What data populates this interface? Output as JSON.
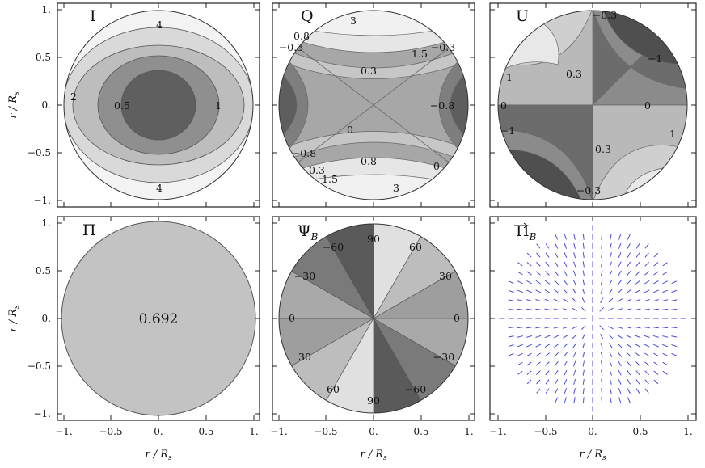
{
  "axis_labels": {
    "y": "r / R",
    "y_sub": "s",
    "x": "r / R",
    "x_sub": "s"
  },
  "chart_data": [
    {
      "type": "contour",
      "panel_label": "I",
      "xlim": [
        -1,
        1
      ],
      "ylim": [
        -1,
        1
      ],
      "x_ticks": [],
      "y_ticks": [
        "1.",
        "0.5",
        "0.",
        "−0.5",
        "−1."
      ],
      "contour_labels": [
        "4",
        "2",
        "0.5",
        "1",
        "4"
      ]
    },
    {
      "type": "contour",
      "panel_label": "Q",
      "xlim": [
        -1,
        1
      ],
      "ylim": [
        -1,
        1
      ],
      "contour_labels": [
        "3",
        "1.5",
        "0.8",
        "−0.3",
        "−0.3",
        "0.3",
        "−0.8",
        "0",
        "−0.8",
        "0.8",
        "0",
        "0.3",
        "1.5",
        "3"
      ]
    },
    {
      "type": "contour",
      "panel_label": "U",
      "xlim": [
        -1,
        1
      ],
      "ylim": [
        -1,
        1
      ],
      "contour_labels": [
        "−0.3",
        "−1",
        "0.3",
        "1",
        "0",
        "0",
        "−1",
        "0.3",
        "1",
        "−0.3"
      ]
    },
    {
      "type": "contour",
      "panel_label": "Π",
      "xlim": [
        -1,
        1
      ],
      "ylim": [
        -1,
        1
      ],
      "value": 0.692,
      "value_label": "0.692",
      "x_ticks": [
        "−1.",
        "−0.5",
        "0.",
        "0.5",
        "1."
      ],
      "y_ticks": [
        "1.",
        "0.5",
        "0.",
        "−0.5",
        "−1."
      ]
    },
    {
      "type": "contour",
      "panel_label": "Ψ",
      "panel_label_sub": "B",
      "xlim": [
        -1,
        1
      ],
      "ylim": [
        -1,
        1
      ],
      "contour_labels": [
        "90",
        "60",
        "30",
        "0",
        "−30",
        "−60",
        "90",
        "60",
        "30",
        "0",
        "−30",
        "−60"
      ],
      "x_ticks": [
        "−1.",
        "−0.5",
        "0.",
        "0.5",
        "1."
      ]
    },
    {
      "type": "vector_field",
      "panel_label": "Π",
      "panel_label_sub": "B",
      "xlim": [
        -1,
        1
      ],
      "ylim": [
        -1,
        1
      ],
      "color": "#4a4ad8",
      "pattern": "radial polarization directions inside unit disk",
      "x_ticks": [
        "−1.",
        "−0.5",
        "0.",
        "0.5",
        "1."
      ]
    }
  ]
}
